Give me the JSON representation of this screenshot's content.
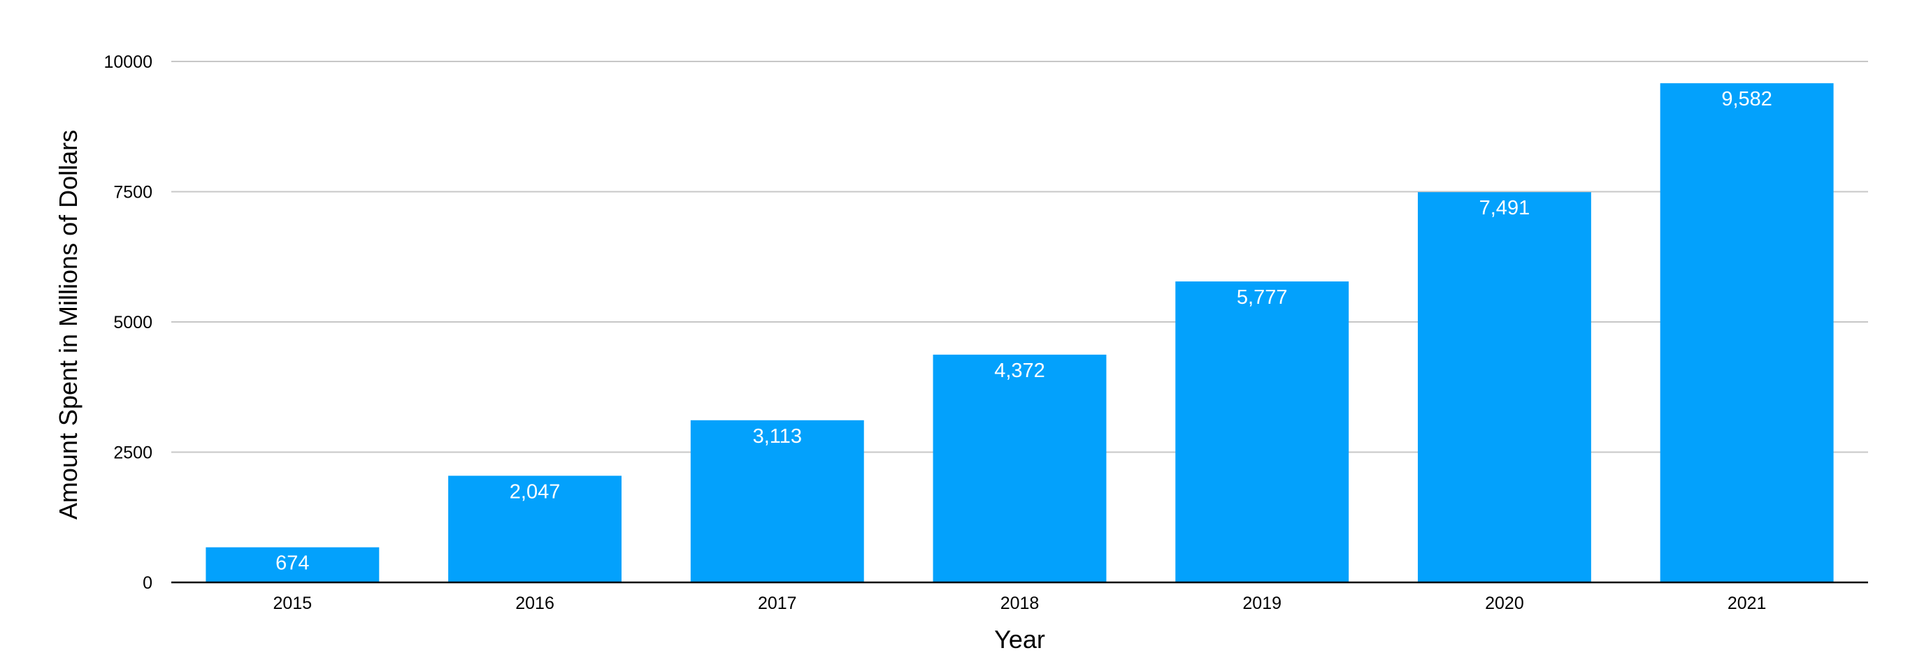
{
  "chart_data": {
    "type": "bar",
    "title": "",
    "xlabel": "Year",
    "ylabel": "Amount Spent in Millions of Dollars",
    "categories": [
      "2015",
      "2016",
      "2017",
      "2018",
      "2019",
      "2020",
      "2021"
    ],
    "values": [
      674,
      2047,
      3113,
      4372,
      5777,
      7491,
      9582
    ],
    "data_labels": [
      "674",
      "2,047",
      "3,113",
      "4,372",
      "5,777",
      "7,491",
      "9,582"
    ],
    "ylim": [
      0,
      10000
    ],
    "yticks": [
      0,
      2500,
      5000,
      7500,
      10000
    ],
    "ytick_labels": [
      "0",
      "2500",
      "5000",
      "7500",
      "10000"
    ],
    "grid": true,
    "legend": "none",
    "colors": {
      "bar": "#03A1FC",
      "grid": "#C7C7C7",
      "axis": "#000000",
      "data_label": "#FFFFFF"
    }
  }
}
